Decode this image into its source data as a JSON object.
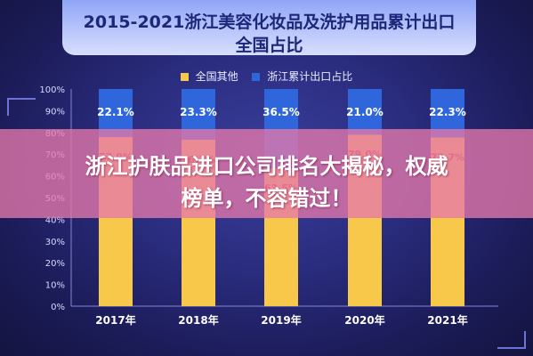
{
  "chart_data": {
    "type": "bar",
    "title": "2015-2021浙江美容化妆品及洗护用品累计出口全国占比",
    "title_lines": [
      "2015-2021浙江美容化妆品及洗护用品累计出口",
      "全国占比"
    ],
    "categories": [
      "2017年",
      "2018年",
      "2019年",
      "2020年",
      "2021年"
    ],
    "series": [
      {
        "name": "全国其他",
        "values": [
          77.9,
          76.7,
          63.5,
          79.0,
          77.7
        ],
        "color": "#f7c84a",
        "labels": [
          "77.9%",
          "76.7%",
          "63.5%",
          "79.0%",
          "77.7%"
        ]
      },
      {
        "name": "浙江累计出口占比",
        "values": [
          22.1,
          23.3,
          36.5,
          21.0,
          22.3
        ],
        "color": "#2f66dc",
        "labels": [
          "22.1%",
          "23.3%",
          "36.5%",
          "21.0%",
          "22.3%"
        ]
      }
    ],
    "stacked": true,
    "ylim": [
      0,
      100
    ],
    "yticks": [
      "0%",
      "10%",
      "20%",
      "30%",
      "40%",
      "50%",
      "60%",
      "70%",
      "80%",
      "90%",
      "100%"
    ],
    "legend_position": "top-center",
    "grid": false
  },
  "overlay": {
    "line1": "浙江护肤品进口公司排名大揭秘，权威",
    "line2": "榜单，不容错过！"
  }
}
